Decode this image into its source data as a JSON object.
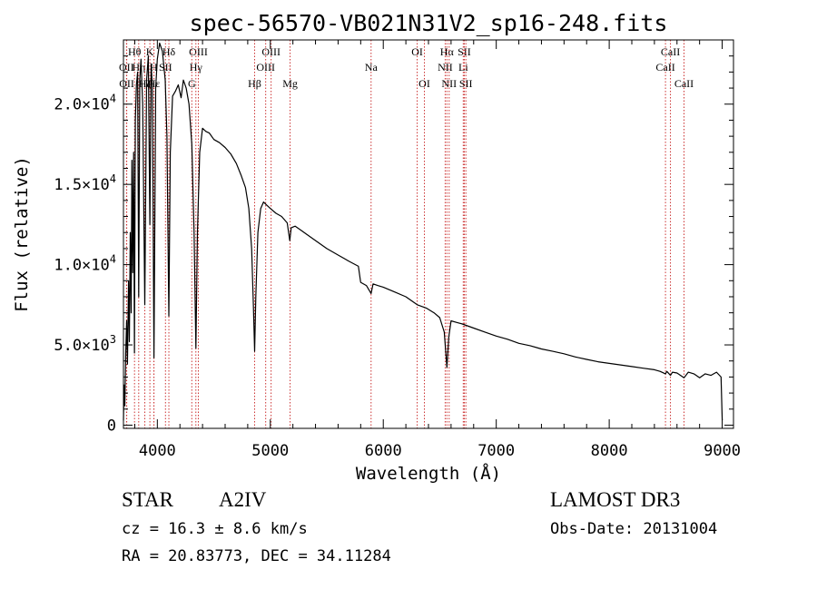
{
  "chart_data": {
    "type": "line",
    "title": "spec-56570-VB021N31V2_sp16-248.fits",
    "xlabel": "Wavelength (Å)",
    "ylabel": "Flux (relative)",
    "xlim": [
      3700,
      9100
    ],
    "ylim": [
      -200,
      24000
    ],
    "x_ticks": [
      4000,
      5000,
      6000,
      7000,
      8000,
      9000
    ],
    "x_tick_labels": [
      "4000",
      "5000",
      "6000",
      "7000",
      "8000",
      "9000"
    ],
    "y_ticks": [
      0,
      5000,
      10000,
      15000,
      20000
    ],
    "y_tick_labels": [
      {
        "mant": "0",
        "exp": ""
      },
      {
        "mant": "5.0×10",
        "exp": "3"
      },
      {
        "mant": "1.0×10",
        "exp": "4"
      },
      {
        "mant": "1.5×10",
        "exp": "4"
      },
      {
        "mant": "2.0×10",
        "exp": "4"
      }
    ],
    "series": [
      {
        "name": "flux",
        "points": [
          [
            3700,
            300
          ],
          [
            3705,
            2500
          ],
          [
            3712,
            1200
          ],
          [
            3720,
            4500
          ],
          [
            3728,
            6500
          ],
          [
            3735,
            3800
          ],
          [
            3745,
            9000
          ],
          [
            3752,
            5200
          ],
          [
            3760,
            12000
          ],
          [
            3768,
            7000
          ],
          [
            3775,
            16500
          ],
          [
            3782,
            9500
          ],
          [
            3790,
            17000
          ],
          [
            3797,
            4500
          ],
          [
            3805,
            19000
          ],
          [
            3815,
            21200
          ],
          [
            3825,
            22000
          ],
          [
            3835,
            8000
          ],
          [
            3845,
            21500
          ],
          [
            3855,
            22800
          ],
          [
            3870,
            20000
          ],
          [
            3889,
            7500
          ],
          [
            3905,
            21500
          ],
          [
            3920,
            23000
          ],
          [
            3934,
            12500
          ],
          [
            3945,
            22500
          ],
          [
            3956,
            21000
          ],
          [
            3970,
            4200
          ],
          [
            3985,
            21000
          ],
          [
            4000,
            22800
          ],
          [
            4020,
            23800
          ],
          [
            4045,
            23300
          ],
          [
            4070,
            21500
          ],
          [
            4085,
            18000
          ],
          [
            4102,
            6800
          ],
          [
            4115,
            17000
          ],
          [
            4135,
            20500
          ],
          [
            4160,
            20800
          ],
          [
            4185,
            21200
          ],
          [
            4210,
            20400
          ],
          [
            4230,
            21500
          ],
          [
            4255,
            21000
          ],
          [
            4280,
            20000
          ],
          [
            4305,
            17500
          ],
          [
            4325,
            12000
          ],
          [
            4341,
            4800
          ],
          [
            4355,
            12000
          ],
          [
            4375,
            17000
          ],
          [
            4400,
            18500
          ],
          [
            4430,
            18300
          ],
          [
            4460,
            18200
          ],
          [
            4500,
            17800
          ],
          [
            4550,
            17600
          ],
          [
            4600,
            17300
          ],
          [
            4650,
            16900
          ],
          [
            4700,
            16300
          ],
          [
            4740,
            15600
          ],
          [
            4780,
            14800
          ],
          [
            4810,
            13500
          ],
          [
            4835,
            11000
          ],
          [
            4850,
            7500
          ],
          [
            4861,
            4600
          ],
          [
            4872,
            8000
          ],
          [
            4890,
            12000
          ],
          [
            4915,
            13500
          ],
          [
            4940,
            13900
          ],
          [
            4970,
            13700
          ],
          [
            5000,
            13500
          ],
          [
            5050,
            13200
          ],
          [
            5100,
            13000
          ],
          [
            5150,
            12600
          ],
          [
            5172,
            11500
          ],
          [
            5185,
            12300
          ],
          [
            5220,
            12400
          ],
          [
            5300,
            12000
          ],
          [
            5400,
            11500
          ],
          [
            5500,
            11000
          ],
          [
            5600,
            10600
          ],
          [
            5700,
            10200
          ],
          [
            5780,
            9900
          ],
          [
            5800,
            8900
          ],
          [
            5850,
            8700
          ],
          [
            5892,
            8200
          ],
          [
            5910,
            8800
          ],
          [
            5950,
            8700
          ],
          [
            6000,
            8600
          ],
          [
            6100,
            8300
          ],
          [
            6200,
            8000
          ],
          [
            6300,
            7500
          ],
          [
            6380,
            7300
          ],
          [
            6450,
            7000
          ],
          [
            6500,
            6700
          ],
          [
            6540,
            5800
          ],
          [
            6563,
            3600
          ],
          [
            6580,
            5500
          ],
          [
            6600,
            6500
          ],
          [
            6650,
            6400
          ],
          [
            6700,
            6300
          ],
          [
            6800,
            6050
          ],
          [
            6900,
            5800
          ],
          [
            7000,
            5550
          ],
          [
            7100,
            5350
          ],
          [
            7200,
            5100
          ],
          [
            7300,
            4950
          ],
          [
            7400,
            4750
          ],
          [
            7500,
            4600
          ],
          [
            7600,
            4450
          ],
          [
            7700,
            4250
          ],
          [
            7800,
            4100
          ],
          [
            7900,
            3950
          ],
          [
            8000,
            3850
          ],
          [
            8100,
            3750
          ],
          [
            8200,
            3650
          ],
          [
            8300,
            3550
          ],
          [
            8400,
            3450
          ],
          [
            8450,
            3350
          ],
          [
            8498,
            3200
          ],
          [
            8510,
            3350
          ],
          [
            8542,
            3100
          ],
          [
            8560,
            3300
          ],
          [
            8600,
            3250
          ],
          [
            8662,
            2950
          ],
          [
            8700,
            3300
          ],
          [
            8750,
            3200
          ],
          [
            8800,
            2950
          ],
          [
            8850,
            3200
          ],
          [
            8900,
            3100
          ],
          [
            8950,
            3300
          ],
          [
            8990,
            3000
          ],
          [
            9000,
            300
          ]
        ]
      }
    ],
    "line_markers": [
      {
        "label": "OII",
        "wave": 3727,
        "row": 2
      },
      {
        "label": "OII",
        "wave": 3729,
        "row": 3
      },
      {
        "label": "Hθ",
        "wave": 3798,
        "row": 1
      },
      {
        "label": "Hη",
        "wave": 3835,
        "row": 2
      },
      {
        "label": "Hζ",
        "wave": 3889,
        "row": 3
      },
      {
        "label": "K",
        "wave": 3934,
        "row": 1
      },
      {
        "label": "H",
        "wave": 3969,
        "row": 2
      },
      {
        "label": "Hε",
        "wave": 3970,
        "row": 3
      },
      {
        "label": "Hδ",
        "wave": 4102,
        "row": 1
      },
      {
        "label": "SII",
        "wave": 4072,
        "row": 2
      },
      {
        "label": "OIII",
        "wave": 4363,
        "row": 1
      },
      {
        "label": "Hγ",
        "wave": 4341,
        "row": 2
      },
      {
        "label": "G",
        "wave": 4305,
        "row": 3
      },
      {
        "label": "Hβ",
        "wave": 4861,
        "row": 3
      },
      {
        "label": "OIII",
        "wave": 5007,
        "row": 1
      },
      {
        "label": "OIII",
        "wave": 4959,
        "row": 2
      },
      {
        "label": "Mg",
        "wave": 5175,
        "row": 3
      },
      {
        "label": "Na",
        "wave": 5892,
        "row": 2
      },
      {
        "label": "OI",
        "wave": 6300,
        "row": 1
      },
      {
        "label": "OI",
        "wave": 6364,
        "row": 3
      },
      {
        "label": "Hα",
        "wave": 6563,
        "row": 1
      },
      {
        "label": "NII",
        "wave": 6548,
        "row": 2
      },
      {
        "label": "NII",
        "wave": 6583,
        "row": 3
      },
      {
        "label": "SII",
        "wave": 6717,
        "row": 1
      },
      {
        "label": "Li",
        "wave": 6708,
        "row": 2
      },
      {
        "label": "SII",
        "wave": 6731,
        "row": 3
      },
      {
        "label": "CaII",
        "wave": 8542,
        "row": 1
      },
      {
        "label": "CaII",
        "wave": 8498,
        "row": 2
      },
      {
        "label": "CaII",
        "wave": 8662,
        "row": 3
      }
    ]
  },
  "info": {
    "object_type": "STAR",
    "subclass": "A2IV",
    "survey": "LAMOST DR3",
    "redshift": "cz = 16.3 ± 8.6 km/s",
    "obs_date": "Obs-Date: 20131004",
    "coords": "RA =  20.83773, DEC =  34.11284"
  },
  "colors": {
    "line": "#000000",
    "marker": "#cc3333",
    "axis": "#000000",
    "background": "#ffffff"
  }
}
